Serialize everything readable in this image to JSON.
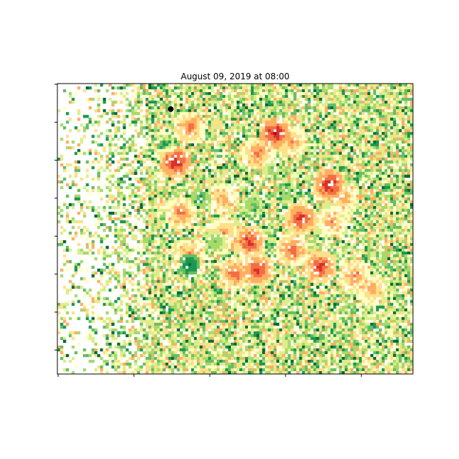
{
  "chart_data": {
    "type": "heatmap",
    "title": "August 09, 2019 at 08:00",
    "xlabel": "",
    "ylabel": "",
    "colormap": "RdYlGn (reversed)",
    "color_scale": [
      "#006837",
      "#1a9850",
      "#66bd63",
      "#a6d96a",
      "#d9ef8b",
      "#ffffbf",
      "#fee08b",
      "#fdae61",
      "#f46d43",
      "#d73027",
      "#a50026"
    ],
    "background_color": "#ffffff",
    "x_ticks_count": 5,
    "y_ticks_count": 8,
    "tick_labels_shown": false,
    "grid": false,
    "hotspot_color": "#a50026",
    "cool_zone_color": "#006837",
    "marker": {
      "color": "#000000",
      "shape": "circle"
    },
    "hotspots": [
      {
        "row": 27,
        "col": 41,
        "value": 1.0
      },
      {
        "row": 17,
        "col": 76,
        "value": 1.0
      },
      {
        "row": 35,
        "col": 95,
        "value": 1.0
      },
      {
        "row": 47,
        "col": 85,
        "value": 0.95
      },
      {
        "row": 55,
        "col": 67,
        "value": 0.95
      },
      {
        "row": 64,
        "col": 92,
        "value": 0.95
      },
      {
        "row": 65,
        "col": 70,
        "value": 0.95
      },
      {
        "row": 58,
        "col": 82,
        "value": 0.9
      },
      {
        "row": 66,
        "col": 62,
        "value": 0.9
      },
      {
        "row": 15,
        "col": 46,
        "value": 0.85
      },
      {
        "row": 24,
        "col": 70,
        "value": 0.85
      },
      {
        "row": 45,
        "col": 43,
        "value": 0.85
      },
      {
        "row": 60,
        "col": 46,
        "value": 0.85
      },
      {
        "row": 67,
        "col": 104,
        "value": 0.85
      },
      {
        "row": 72,
        "col": 110,
        "value": 0.8
      },
      {
        "row": 40,
        "col": 58,
        "value": 0.8
      },
      {
        "row": 20,
        "col": 82,
        "value": 0.8
      },
      {
        "row": 52,
        "col": 58,
        "value": 0.8
      },
      {
        "row": 48,
        "col": 96,
        "value": 0.8
      },
      {
        "row": 40,
        "col": 100,
        "value": 0.8
      }
    ],
    "cool_zones": [
      {
        "row": 63,
        "col": 46,
        "value": 0.0
      },
      {
        "row": 40,
        "col": 50,
        "value": 0.15
      },
      {
        "row": 55,
        "col": 55,
        "value": 0.2
      },
      {
        "row": 38,
        "col": 80,
        "value": 0.2
      },
      {
        "row": 30,
        "col": 75,
        "value": 0.25
      },
      {
        "row": 42,
        "col": 68,
        "value": 0.2
      },
      {
        "row": 20,
        "col": 38,
        "value": 0.3
      }
    ]
  }
}
